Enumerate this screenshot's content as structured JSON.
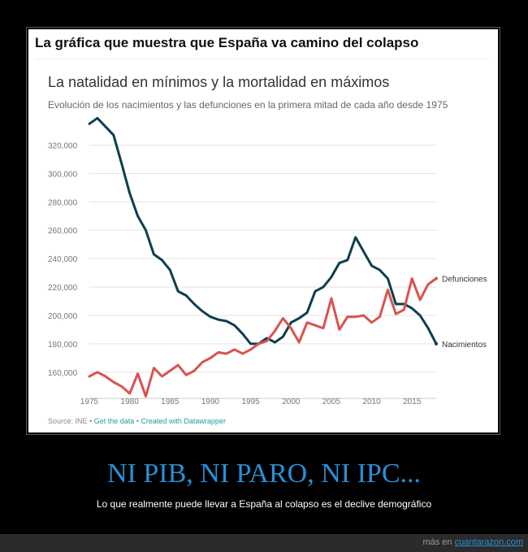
{
  "meme": {
    "title": "La gráfica que muestra que España va camino del colapso",
    "caption_title": "NI PIB, NI PARO, NI IPC...",
    "caption_text": "Lo que realmente puede llevar a España al colapso es el declive demográfico",
    "footer_prefix": "más en",
    "footer_site": "cuantarazon.com"
  },
  "source": {
    "text": "Source: INE",
    "sep1": " • ",
    "get_data": "Get the data",
    "sep2": " • ",
    "created_with": "Created with Datawrapper"
  },
  "colors": {
    "nacimientos": "#0d3f4e",
    "defunciones": "#d9534f",
    "grid": "#e3e3e3",
    "caption": "#2a8fd6",
    "link": "#1aa0a0"
  },
  "chart_data": {
    "type": "line",
    "title": "La natalidad en mínimos y la mortalidad en máximos",
    "subtitle": "Evolución de los nacimientos y las defunciones en la primera mitad de cada año desde 1975",
    "x_ticks": [
      "1975",
      "1980",
      "1985",
      "1990",
      "1995",
      "2000",
      "2005",
      "2010",
      "2015"
    ],
    "y_ticks": [
      "160,000",
      "180,000",
      "200,000",
      "220,000",
      "240,000",
      "260,000",
      "280,000",
      "300,000",
      "320,000"
    ],
    "xlim": [
      1975,
      2018
    ],
    "ylim": [
      145000,
      330000
    ],
    "grid": true,
    "x": [
      1975,
      1976,
      1977,
      1978,
      1979,
      1980,
      1981,
      1982,
      1983,
      1984,
      1985,
      1986,
      1987,
      1988,
      1989,
      1990,
      1991,
      1992,
      1993,
      1994,
      1995,
      1996,
      1997,
      1998,
      1999,
      2000,
      2001,
      2002,
      2003,
      2004,
      2005,
      2006,
      2007,
      2008,
      2009,
      2010,
      2011,
      2012,
      2013,
      2014,
      2015,
      2016,
      2017,
      2018
    ],
    "series": [
      {
        "name": "Nacimientos",
        "values": [
          335000,
          339000,
          333000,
          327000,
          307000,
          286000,
          270000,
          260000,
          243000,
          239000,
          232000,
          217000,
          214000,
          208000,
          203000,
          199000,
          197000,
          196000,
          193000,
          187000,
          180000,
          180000,
          184000,
          181000,
          185000,
          195000,
          198000,
          202000,
          217000,
          220000,
          227000,
          237000,
          239000,
          255000,
          245000,
          235000,
          232000,
          226000,
          208000,
          208000,
          205000,
          200000,
          191000,
          180000
        ]
      },
      {
        "name": "Defunciones",
        "values": [
          157000,
          160000,
          157000,
          153000,
          150000,
          145000,
          159000,
          143000,
          163000,
          157000,
          161000,
          165000,
          158000,
          161000,
          167000,
          170000,
          174000,
          173000,
          176000,
          173000,
          176000,
          180000,
          182000,
          189000,
          198000,
          191000,
          181000,
          195000,
          193000,
          191000,
          212000,
          190000,
          199000,
          199000,
          200000,
          195000,
          199000,
          218000,
          201000,
          204000,
          226000,
          211000,
          222000,
          226000
        ]
      }
    ]
  }
}
